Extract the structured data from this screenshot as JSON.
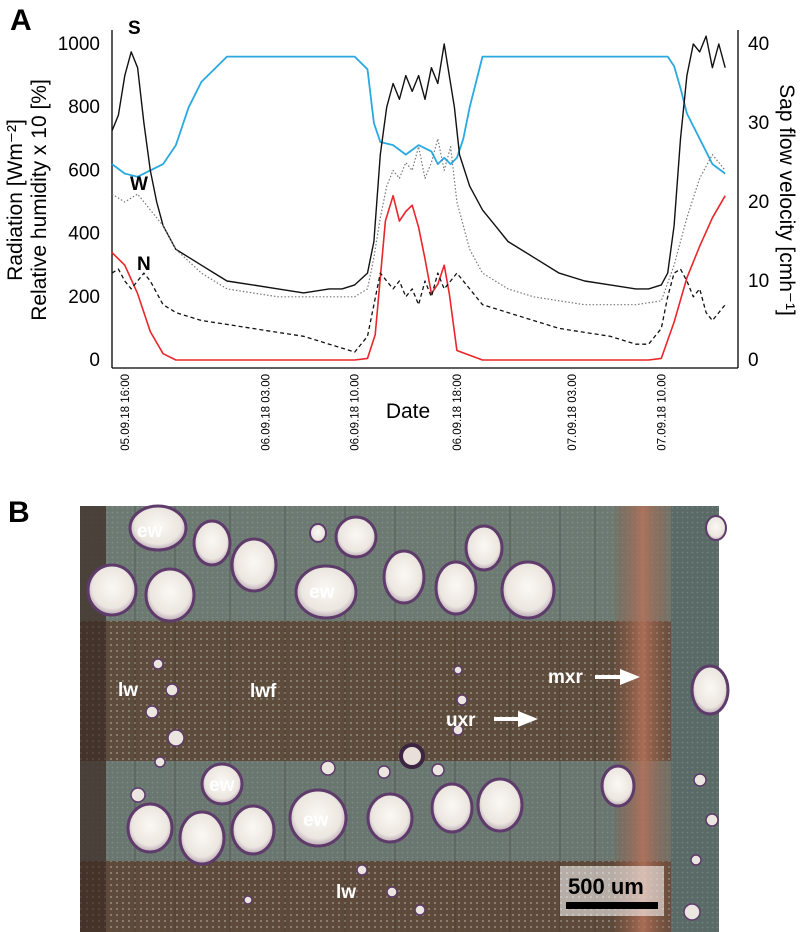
{
  "panel_a": {
    "letter": "A",
    "left_axis_title_1": "Radiation [Wm⁻²]",
    "left_axis_title_2": "Relative humidity x 10 [%]",
    "right_axis_title": "Sap flow velocity [cmh⁻¹]",
    "x_axis_title": "Date"
  },
  "panel_b": {
    "letter": "B",
    "labels": [
      "ew",
      "ew",
      "lw",
      "lwf",
      "uxr",
      "mxr",
      "ew",
      "ew",
      "lw"
    ],
    "scale_bar_label": "500 um"
  },
  "chart_data": {
    "type": "line",
    "xlabel": "Date",
    "ylabel": "Radiation [Wm⁻²] / Relative humidity x 10 [%]",
    "y2label": "Sap flow velocity [cmh⁻¹]",
    "ylim": [
      0,
      1000
    ],
    "y2lim": [
      0,
      40
    ],
    "left_ticks": [
      0,
      200,
      400,
      600,
      800,
      1000
    ],
    "right_ticks": [
      0,
      10,
      20,
      30,
      40
    ],
    "x_tick_labels": [
      "05.09.18  16:00",
      "06.09.18 03.00",
      "06.09.18  10.00",
      "06.09.18  18:00",
      "07.09.18  03.00",
      "07.09.18  10.00"
    ],
    "x_tick_hours": [
      16,
      27,
      34,
      42,
      51,
      58
    ],
    "x_range_hours": [
      15,
      64
    ],
    "series_tags": [
      "S",
      "W",
      "N"
    ],
    "colors": {
      "radiation": "#e8262b",
      "humidity": "#29a9e0",
      "sapflow_s": "#111111",
      "sapflow_w": "#777777",
      "sapflow_n": "#111111"
    },
    "series": [
      {
        "axis": "left",
        "x": [
          15,
          16,
          17,
          18,
          19,
          20,
          22,
          24,
          26,
          28,
          30,
          32,
          34,
          35,
          35.6,
          36,
          36.4,
          37,
          37.5,
          38,
          38.5,
          39,
          39.5,
          40,
          40.5,
          41,
          41.4,
          42,
          43,
          44,
          46,
          48,
          50,
          52,
          54,
          56,
          57,
          58,
          59,
          60,
          61,
          62,
          63
        ],
        "values": [
          340,
          300,
          210,
          90,
          20,
          0,
          0,
          0,
          0,
          0,
          0,
          0,
          0,
          5,
          80,
          260,
          440,
          520,
          440,
          470,
          490,
          420,
          320,
          210,
          240,
          300,
          210,
          30,
          15,
          0,
          0,
          0,
          0,
          0,
          0,
          0,
          0,
          5,
          120,
          260,
          360,
          450,
          520
        ]
      },
      {
        "axis": "left",
        "x": [
          15,
          16,
          17,
          18,
          19,
          20,
          21,
          22,
          24,
          26,
          28,
          30,
          32,
          34,
          35,
          35.5,
          36,
          37,
          38,
          39,
          40,
          40.5,
          41,
          41.5,
          42,
          42.5,
          43,
          44,
          45,
          46,
          48,
          50,
          52,
          54,
          56,
          58,
          58.5,
          59,
          59.5,
          60,
          61,
          62,
          63
        ],
        "values": [
          620,
          590,
          580,
          600,
          620,
          680,
          800,
          880,
          960,
          960,
          960,
          960,
          960,
          960,
          920,
          750,
          690,
          680,
          650,
          680,
          660,
          620,
          640,
          620,
          640,
          700,
          800,
          960,
          960,
          960,
          960,
          960,
          960,
          960,
          960,
          960,
          960,
          930,
          860,
          780,
          700,
          620,
          590
        ]
      },
      {
        "axis": "right",
        "x": [
          15,
          15.5,
          16,
          16.5,
          17,
          17.5,
          18,
          18.5,
          19,
          20,
          21,
          22,
          23,
          24,
          26,
          28,
          30,
          32,
          33,
          34,
          35,
          35.5,
          36,
          36.5,
          37,
          37.5,
          38,
          38.5,
          39,
          39.5,
          40,
          40.5,
          41,
          41.4,
          41.8,
          42.2,
          43,
          44,
          45,
          46,
          48,
          50,
          52,
          54,
          56,
          57,
          58,
          58.5,
          59,
          59.5,
          60,
          60.5,
          61,
          61.5,
          62,
          62.5,
          63
        ],
        "values": [
          29,
          31,
          36,
          39,
          37,
          30,
          24,
          20,
          17,
          14,
          13,
          12,
          11,
          10,
          9.5,
          9,
          8.5,
          9,
          9,
          9.5,
          11,
          15,
          26,
          32,
          35,
          33,
          36,
          34,
          36,
          33,
          37,
          35,
          40,
          36,
          32,
          26,
          22,
          19,
          17,
          15,
          13,
          11,
          10,
          9.5,
          9,
          9,
          9.5,
          11,
          17,
          28,
          36,
          40,
          39,
          41,
          37,
          40,
          37
        ]
      },
      {
        "axis": "right",
        "x": [
          15,
          16,
          17,
          18,
          19,
          20,
          22,
          24,
          26,
          28,
          30,
          32,
          34,
          35,
          35.5,
          36,
          36.5,
          37,
          37.5,
          38,
          38.5,
          39,
          39.5,
          40,
          40.5,
          41,
          41.5,
          42,
          43,
          44,
          46,
          48,
          50,
          52,
          54,
          56,
          58,
          59,
          60,
          61,
          62,
          63
        ],
        "values": [
          21,
          20,
          21,
          19,
          17,
          14,
          11,
          9,
          8.5,
          8,
          8,
          8,
          8,
          9,
          13,
          18,
          22,
          24,
          23,
          25,
          24,
          27,
          23,
          25,
          28,
          24,
          27,
          20,
          14,
          11,
          9,
          8,
          7.5,
          7,
          7,
          7,
          7.5,
          12,
          18,
          23,
          26,
          24
        ]
      },
      {
        "axis": "right",
        "x": [
          15,
          15.5,
          16,
          16.5,
          17,
          17.5,
          18,
          18.5,
          19,
          19.5,
          20,
          21,
          22,
          24,
          26,
          28,
          30,
          32,
          33,
          34,
          35,
          35.5,
          36,
          36.5,
          37,
          37.5,
          38,
          38.5,
          39,
          39.5,
          40,
          40.5,
          41,
          41.5,
          42,
          43,
          44,
          46,
          48,
          50,
          52,
          54,
          56,
          57,
          58,
          58.5,
          59,
          59.5,
          60,
          60.5,
          61,
          61.5,
          62,
          62.5,
          63
        ],
        "values": [
          11,
          11.5,
          10,
          9,
          10,
          11,
          10,
          8.5,
          7,
          6.5,
          6,
          5.5,
          5,
          4.5,
          4,
          3.5,
          3,
          2,
          1.5,
          1,
          3,
          7,
          11,
          10,
          9,
          10,
          8,
          9,
          7,
          10,
          8,
          11,
          9,
          10,
          11,
          9,
          7,
          6,
          5,
          4,
          3.5,
          3,
          2,
          2,
          4,
          8,
          11,
          11.5,
          10,
          8,
          9,
          6,
          5,
          6,
          7
        ]
      }
    ]
  }
}
